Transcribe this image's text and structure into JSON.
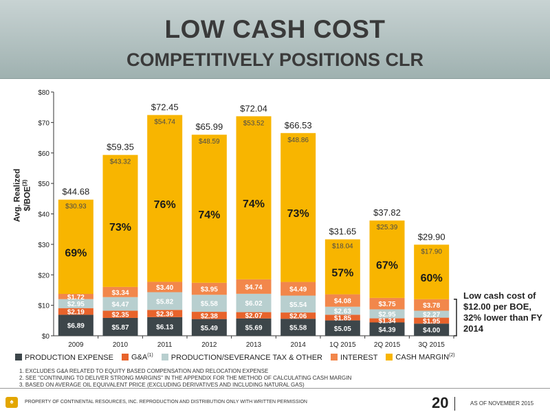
{
  "header": {
    "title_line1": "LOW CASH COST",
    "title_line2": "COMPETITIVELY POSITIONS CLR"
  },
  "legend": {
    "items": [
      {
        "label": "PRODUCTION EXPENSE",
        "sup": "",
        "color": "#3d464a"
      },
      {
        "label": "G&A",
        "sup": "(1)",
        "color": "#e8632b"
      },
      {
        "label": "PRODUCTION/SEVERANCE TAX & OTHER",
        "sup": "",
        "color": "#b8cfcf"
      },
      {
        "label": "INTEREST",
        "sup": "",
        "color": "#f2874b"
      },
      {
        "label": "CASH MARGIN",
        "sup": "(2)",
        "color": "#f8b500"
      }
    ]
  },
  "callout": {
    "text": "Low cash cost of $12.00 per BOE, 32% lower than FY 2014"
  },
  "notes": [
    "1. EXCLUDES G&A RELATED TO EQUITY BASED COMPENSATION AND RELOCATION EXPENSE",
    "2. SEE \"CONTINUING TO DELIVER STRONG MARGINS\" IN THE APPENDIX FOR THE METHOD OF CALCULATING CASH MARGIN",
    "3. BASED ON AVERAGE OIL EQUIVALENT PRICE (EXCLUDING DERIVATIVES AND INCLUDING NATURAL GAS)"
  ],
  "footer": {
    "text": "PROPERTY OF CONTINENTAL RESOURCES, INC. REPRODUCTION AND DISTRIBUTION ONLY WITH WRITTEN PERMISSION",
    "page": "20",
    "date": "AS OF NOVEMBER 2015"
  },
  "chart_data": {
    "type": "bar",
    "stacked": true,
    "ylabel": "Avg. Realized $/BOE",
    "ylabel_sup": "(3)",
    "ylim": [
      0,
      80
    ],
    "yticks": [
      "$0",
      "$10",
      "$20",
      "$30",
      "$40",
      "$50",
      "$60",
      "$70",
      "$80"
    ],
    "grid": false,
    "legend_position": "bottom",
    "categories": [
      "2009",
      "2010",
      "2011",
      "2012",
      "2013",
      "2014",
      "1Q 2015",
      "2Q 2015",
      "3Q 2015"
    ],
    "series": [
      {
        "name": "PRODUCTION EXPENSE",
        "values": [
          6.89,
          5.87,
          6.13,
          5.49,
          5.69,
          5.58,
          5.05,
          4.39,
          4.0
        ],
        "labels": [
          "$6.89",
          "$5.87",
          "$6.13",
          "$5.49",
          "$5.69",
          "$5.58",
          "$5.05",
          "$4.39",
          "$4.00"
        ]
      },
      {
        "name": "G&A",
        "values": [
          2.19,
          2.35,
          2.36,
          2.38,
          2.07,
          2.06,
          1.85,
          1.34,
          1.95
        ],
        "labels": [
          "$2.19",
          "$2.35",
          "$2.36",
          "$2.38",
          "$2.07",
          "$2.06",
          "$1.85",
          "$1.34",
          "$1.95"
        ]
      },
      {
        "name": "PRODUCTION/SEVERANCE TAX & OTHER",
        "values": [
          2.95,
          4.47,
          5.82,
          5.58,
          6.02,
          5.54,
          2.63,
          2.95,
          2.27
        ],
        "labels": [
          "$2.95",
          "$4.47",
          "$5.82",
          "$5.58",
          "$6.02",
          "$5.54",
          "$2.63",
          "$2.95",
          "$2.27"
        ]
      },
      {
        "name": "INTEREST",
        "values": [
          1.72,
          3.34,
          3.4,
          3.95,
          4.74,
          4.49,
          4.08,
          3.75,
          3.78
        ],
        "labels": [
          "$1.72",
          "$3.34",
          "$3.40",
          "$3.95",
          "$4.74",
          "$4.49",
          "$4.08",
          "$3.75",
          "$3.78"
        ]
      },
      {
        "name": "CASH MARGIN",
        "values": [
          30.93,
          43.32,
          54.74,
          48.59,
          53.52,
          48.86,
          18.04,
          25.39,
          17.9
        ],
        "labels": [
          "$30.93",
          "$43.32",
          "$54.74",
          "$48.59",
          "$53.52",
          "$48.86",
          "$18.04",
          "$25.39",
          "$17.90"
        ]
      }
    ],
    "totals": [
      44.68,
      59.35,
      72.45,
      65.99,
      72.04,
      66.53,
      31.65,
      37.82,
      29.9
    ],
    "total_labels": [
      "$44.68",
      "$59.35",
      "$72.45",
      "$65.99",
      "$72.04",
      "$66.53",
      "$31.65",
      "$37.82",
      "$29.90"
    ],
    "margin_pct_labels": [
      "69%",
      "73%",
      "76%",
      "74%",
      "74%",
      "73%",
      "57%",
      "67%",
      "60%"
    ],
    "margin_pct_values": [
      69,
      73,
      76,
      74,
      74,
      73,
      57,
      67,
      60
    ]
  }
}
